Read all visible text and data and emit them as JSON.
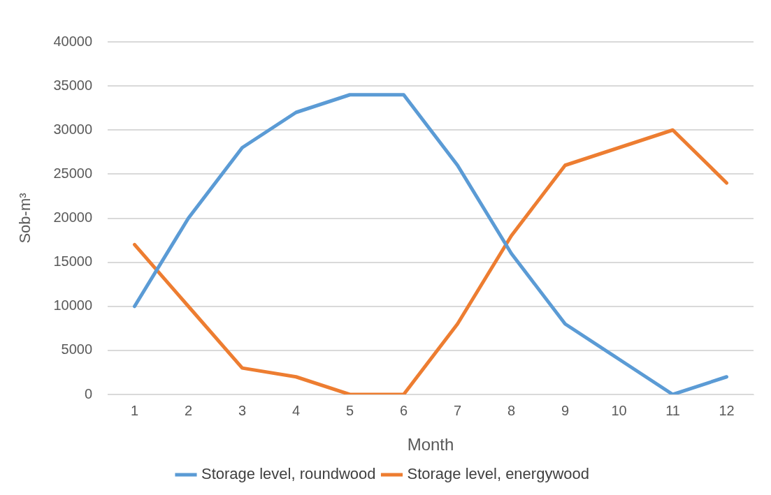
{
  "chart_data": {
    "type": "line",
    "xlabel": "Month",
    "ylabel": "Sob-m³",
    "categories": [
      "1",
      "2",
      "3",
      "4",
      "5",
      "6",
      "7",
      "8",
      "9",
      "10",
      "11",
      "12"
    ],
    "series": [
      {
        "name": "Storage level, roundwood",
        "color": "#5b9bd5",
        "values": [
          10000,
          20000,
          28000,
          32000,
          34000,
          34000,
          26000,
          16000,
          8000,
          4000,
          0,
          2000
        ]
      },
      {
        "name": "Storage level, energywood",
        "color": "#ed7d31",
        "values": [
          17000,
          10000,
          3000,
          2000,
          0,
          0,
          8000,
          18000,
          26000,
          28000,
          30000,
          24000
        ]
      }
    ],
    "ylim": [
      0,
      40000
    ],
    "yticks": [
      0,
      5000,
      10000,
      15000,
      20000,
      25000,
      30000,
      35000,
      40000
    ],
    "grid": "y",
    "legend": "bottom",
    "marker": "none",
    "line_style": "solid"
  }
}
